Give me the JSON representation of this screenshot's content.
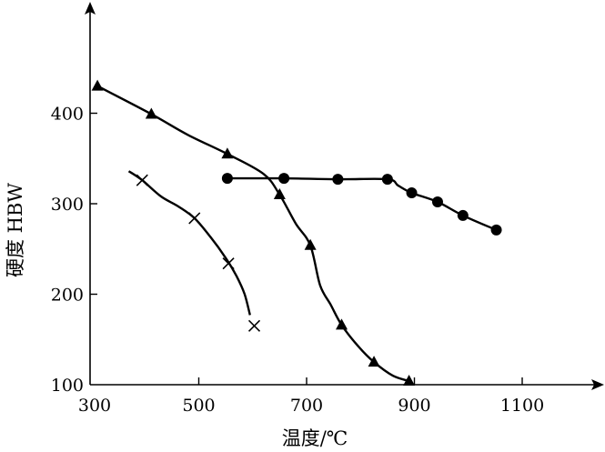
{
  "chart_data": {
    "type": "line",
    "xlabel": "温度/℃",
    "ylabel": "硬度 HBW",
    "xlim": [
      300,
      1200
    ],
    "ylim": [
      100,
      520
    ],
    "x_ticks": [
      300,
      500,
      700,
      900,
      1100
    ],
    "x_tick_labels": [
      "300",
      "500",
      "700",
      "900",
      "1100"
    ],
    "y_ticks": [
      100,
      200,
      300,
      400
    ],
    "y_tick_labels": [
      "100",
      "200",
      "300",
      "400"
    ],
    "grid": false,
    "series": [
      {
        "marker": "cross",
        "points": [
          [
            395,
            326
          ],
          [
            492,
            284
          ],
          [
            555,
            234
          ],
          [
            603,
            165
          ]
        ],
        "curve": [
          [
            370,
            336
          ],
          [
            395,
            326
          ],
          [
            430,
            308
          ],
          [
            462,
            297
          ],
          [
            492,
            284
          ],
          [
            522,
            263
          ],
          [
            550,
            240
          ],
          [
            570,
            220
          ],
          [
            585,
            200
          ],
          [
            595,
            177
          ]
        ]
      },
      {
        "marker": "triangle",
        "points": [
          [
            312,
            430
          ],
          [
            412,
            399
          ],
          [
            553,
            355
          ],
          [
            650,
            310
          ],
          [
            707,
            254
          ],
          [
            765,
            166
          ],
          [
            825,
            125
          ],
          [
            890,
            104
          ]
        ],
        "curve": [
          [
            312,
            430
          ],
          [
            412,
            399
          ],
          [
            480,
            376
          ],
          [
            553,
            355
          ],
          [
            620,
            333
          ],
          [
            650,
            310
          ],
          [
            680,
            278
          ],
          [
            707,
            254
          ],
          [
            725,
            210
          ],
          [
            745,
            188
          ],
          [
            765,
            166
          ],
          [
            795,
            143
          ],
          [
            825,
            125
          ],
          [
            860,
            110
          ],
          [
            890,
            104
          ]
        ]
      },
      {
        "marker": "circle",
        "points": [
          [
            553,
            328
          ],
          [
            658,
            328
          ],
          [
            758,
            327
          ],
          [
            850,
            327
          ],
          [
            895,
            312
          ],
          [
            943,
            302
          ],
          [
            990,
            287
          ],
          [
            1052,
            271
          ]
        ],
        "curve": [
          [
            553,
            328
          ],
          [
            658,
            328
          ],
          [
            758,
            327
          ],
          [
            850,
            327
          ],
          [
            870,
            320
          ],
          [
            895,
            312
          ],
          [
            943,
            302
          ],
          [
            990,
            287
          ],
          [
            1052,
            271
          ]
        ]
      }
    ]
  }
}
